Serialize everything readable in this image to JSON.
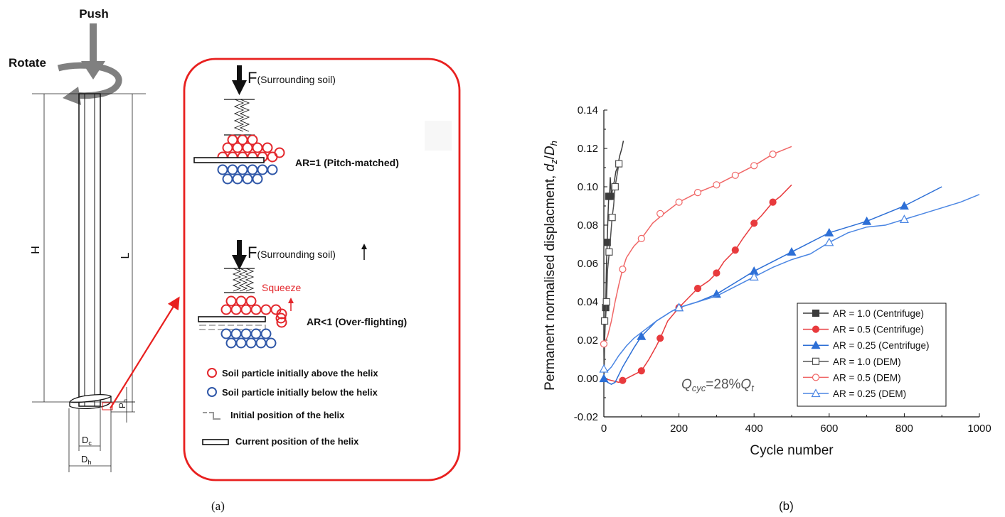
{
  "pile": {
    "push_label": "Push",
    "rotate_label": "Rotate",
    "H_label": "H",
    "L_label": "L",
    "Ph_label_main": "P",
    "Ph_label_sub": "h",
    "Dc_label_main": "D",
    "Dc_label_sub": "c",
    "Dh_label_main": "D",
    "Dh_label_sub": "h"
  },
  "mechanism": {
    "f_label": "F",
    "surrounding": "(Surrounding soil)",
    "ar1_label": "AR=1  (Pitch-matched)",
    "ar2_label": "AR<1 (Over-flighting)",
    "squeeze_label": "Squeeze",
    "legend": [
      {
        "text": "Soil particle initially above the helix",
        "color": "#e3262b"
      },
      {
        "text": "Soil particle initially below the helix",
        "color": "#2f57a8"
      },
      {
        "text": "Initial position of the helix"
      },
      {
        "text": "Current position of the helix"
      }
    ]
  },
  "caption_a": "(a)",
  "caption_b": "(b)",
  "chart_data": {
    "type": "line",
    "xlabel": "Cycle number",
    "ylabel_main": "Permanent normalised displacment, ",
    "ylabel_var1": "d",
    "ylabel_sub1": "z",
    "ylabel_slash": "/",
    "ylabel_var2": "D",
    "ylabel_sub2": "h",
    "xlim": [
      0,
      1000
    ],
    "ylim": [
      -0.02,
      0.14
    ],
    "xticks": [
      "0",
      "200",
      "400",
      "600",
      "800",
      "1000"
    ],
    "yticks": [
      "-0.02",
      "0.00",
      "0.02",
      "0.04",
      "0.06",
      "0.08",
      "0.10",
      "0.12",
      "0.14"
    ],
    "annotation": {
      "q1": "Q",
      "q1sub": "cyc",
      "mid": "=28%",
      "q2": "Q",
      "q2sub": "t"
    },
    "legend_placement": "bottom-right",
    "series": [
      {
        "name": "AR = 1.0 (Centrifuge)",
        "color": "#3c3c3c",
        "marker": "square",
        "filled": true,
        "x": [
          0,
          1,
          3,
          5,
          7,
          9,
          11,
          13,
          15,
          17,
          20,
          24,
          28,
          32,
          36,
          42,
          48,
          52
        ],
        "y": [
          0.0,
          0.005,
          0.028,
          0.037,
          0.06,
          0.072,
          0.085,
          0.095,
          0.094,
          0.105,
          0.095,
          0.1,
          0.103,
          0.108,
          0.11,
          0.116,
          0.12,
          0.124
        ],
        "mx": [
          5,
          9,
          13,
          17
        ],
        "my": [
          0.037,
          0.071,
          0.095,
          0.095
        ]
      },
      {
        "name": "AR = 0.5 (Centrifuge)",
        "color": "#e83a3d",
        "marker": "circle",
        "filled": true,
        "x": [
          0,
          20,
          40,
          50,
          70,
          90,
          100,
          120,
          140,
          150,
          170,
          200,
          230,
          250,
          280,
          300,
          320,
          350,
          370,
          400,
          420,
          450,
          470,
          500
        ],
        "y": [
          0.0,
          -0.001,
          -0.002,
          -0.001,
          0.001,
          0.003,
          0.004,
          0.01,
          0.017,
          0.021,
          0.03,
          0.037,
          0.043,
          0.047,
          0.051,
          0.055,
          0.061,
          0.067,
          0.073,
          0.081,
          0.085,
          0.092,
          0.095,
          0.101
        ],
        "mx": [
          50,
          100,
          150,
          200,
          250,
          300,
          350,
          400,
          450
        ],
        "my": [
          -0.001,
          0.004,
          0.021,
          0.037,
          0.047,
          0.055,
          0.067,
          0.081,
          0.092
        ]
      },
      {
        "name": "AR = 0.25 (Centrifuge)",
        "color": "#2d6fd6",
        "marker": "triangle",
        "filled": true,
        "x": [
          0,
          10,
          20,
          30,
          50,
          80,
          100,
          140,
          180,
          200,
          250,
          300,
          350,
          400,
          450,
          500,
          550,
          600,
          650,
          700,
          750,
          800,
          850,
          900
        ],
        "y": [
          0.0,
          -0.002,
          -0.003,
          -0.002,
          0.006,
          0.016,
          0.022,
          0.03,
          0.035,
          0.037,
          0.04,
          0.044,
          0.05,
          0.056,
          0.061,
          0.066,
          0.071,
          0.076,
          0.079,
          0.082,
          0.086,
          0.09,
          0.095,
          0.1
        ],
        "mx": [
          0,
          100,
          200,
          300,
          400,
          500,
          600,
          700,
          800
        ],
        "my": [
          0.0,
          0.022,
          0.037,
          0.044,
          0.056,
          0.066,
          0.076,
          0.082,
          0.09
        ]
      },
      {
        "name": "AR = 1.0 (DEM)",
        "color": "#505050",
        "marker": "square",
        "filled": false,
        "x": [
          0,
          2,
          4,
          6,
          8,
          10,
          14,
          18,
          22,
          26,
          30,
          35,
          40
        ],
        "y": [
          0.004,
          0.021,
          0.029,
          0.036,
          0.045,
          0.057,
          0.065,
          0.074,
          0.084,
          0.09,
          0.1,
          0.106,
          0.112
        ],
        "mx": [
          2,
          7,
          14,
          22,
          30,
          40
        ],
        "my": [
          0.03,
          0.04,
          0.066,
          0.084,
          0.1,
          0.112
        ]
      },
      {
        "name": "AR = 0.5 (DEM)",
        "color": "#f06666",
        "marker": "circle",
        "filled": false,
        "x": [
          0,
          10,
          20,
          30,
          40,
          50,
          60,
          80,
          100,
          130,
          160,
          200,
          250,
          300,
          350,
          400,
          450,
          500
        ],
        "y": [
          0.018,
          0.022,
          0.03,
          0.04,
          0.049,
          0.057,
          0.063,
          0.069,
          0.073,
          0.081,
          0.086,
          0.092,
          0.097,
          0.101,
          0.106,
          0.111,
          0.117,
          0.121
        ],
        "mx": [
          0,
          50,
          100,
          150,
          200,
          250,
          300,
          350,
          400,
          450
        ],
        "my": [
          0.018,
          0.057,
          0.073,
          0.086,
          0.092,
          0.097,
          0.101,
          0.106,
          0.111,
          0.117
        ]
      },
      {
        "name": "AR = 0.25 (DEM)",
        "color": "#4b86e3",
        "marker": "triangle",
        "filled": false,
        "x": [
          0,
          10,
          20,
          40,
          60,
          80,
          100,
          140,
          180,
          200,
          250,
          300,
          350,
          400,
          450,
          500,
          550,
          600,
          650,
          700,
          750,
          800,
          850,
          900,
          950,
          1000
        ],
        "y": [
          0.005,
          0.004,
          0.006,
          0.012,
          0.017,
          0.021,
          0.024,
          0.03,
          0.035,
          0.037,
          0.04,
          0.043,
          0.048,
          0.053,
          0.058,
          0.062,
          0.065,
          0.071,
          0.076,
          0.079,
          0.08,
          0.083,
          0.086,
          0.089,
          0.092,
          0.096
        ],
        "mx": [
          0,
          200,
          400,
          600,
          800
        ],
        "my": [
          0.005,
          0.037,
          0.053,
          0.071,
          0.083
        ]
      }
    ]
  }
}
